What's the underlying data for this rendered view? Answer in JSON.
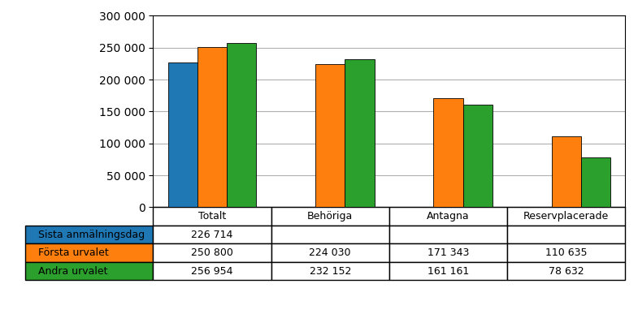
{
  "chart_data": {
    "type": "bar",
    "categories": [
      "Totalt",
      "Behöriga",
      "Antagna",
      "Reservplacerade"
    ],
    "series": [
      {
        "name": "Sista anmälningsdag",
        "values": [
          226714,
          null,
          null,
          null
        ],
        "value_labels": [
          "226 714",
          null,
          null,
          null
        ]
      },
      {
        "name": "Första urvalet",
        "values": [
          250800,
          224030,
          171343,
          110635
        ],
        "value_labels": [
          "250 800",
          "224 030",
          "171 343",
          "110 635"
        ]
      },
      {
        "name": "Andra urvalet",
        "values": [
          256954,
          232152,
          161161,
          78632
        ],
        "value_labels": [
          "256 954",
          "232 152",
          "161 161",
          "78 632"
        ]
      }
    ],
    "ylim": [
      0,
      300000
    ],
    "yticks": [
      0,
      {
        "value": 50000,
        "label": "50 000"
      },
      {
        "value": 100000,
        "label": "100 000"
      },
      {
        "value": 150000,
        "label": "150 000"
      },
      {
        "value": 200000,
        "label": "200 000"
      },
      {
        "value": 250000,
        "label": "250 000"
      },
      {
        "value": 300000,
        "label": "300 000"
      }
    ],
    "grid": true,
    "data_labels": true
  }
}
